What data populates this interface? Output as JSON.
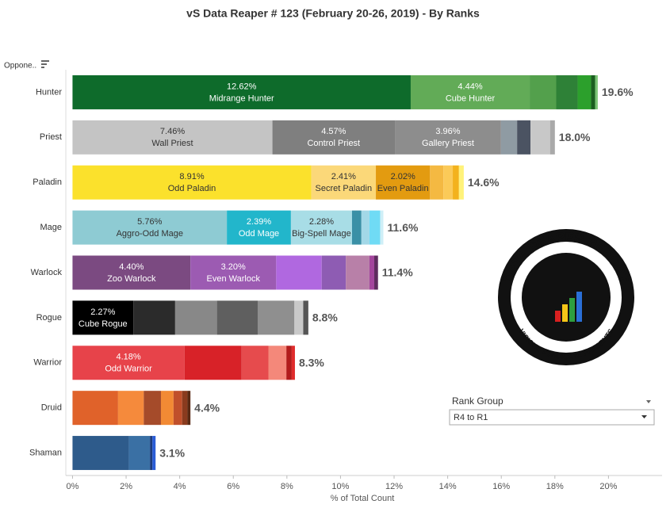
{
  "chart_data": {
    "type": "bar",
    "orientation": "horizontal",
    "stacked": true,
    "title": "vS Data Reaper #  123 (February 20-26, 2019) - By Ranks",
    "row_header": "Oppone..",
    "x_label": "% of Total Count",
    "xlim": [
      -0.25,
      22
    ],
    "xticks": [
      {
        "value": 0,
        "label": "0%"
      },
      {
        "value": 2,
        "label": "2%"
      },
      {
        "value": 4,
        "label": "4%"
      },
      {
        "value": 6,
        "label": "6%"
      },
      {
        "value": 8,
        "label": "8%"
      },
      {
        "value": 10,
        "label": "10%"
      },
      {
        "value": 12,
        "label": "12%"
      },
      {
        "value": 14,
        "label": "14%"
      },
      {
        "value": 16,
        "label": "16%"
      },
      {
        "value": 18,
        "label": "18%"
      },
      {
        "value": 20,
        "label": "20%"
      }
    ],
    "categories": [
      "Hunter",
      "Priest",
      "Paladin",
      "Mage",
      "Warlock",
      "Rogue",
      "Warrior",
      "Druid",
      "Shaman"
    ],
    "totals": [
      19.6,
      18.0,
      14.6,
      11.6,
      11.4,
      8.8,
      8.3,
      4.4,
      3.1
    ],
    "total_labels": [
      "19.6%",
      "18.0%",
      "14.6%",
      "11.6%",
      "11.4%",
      "8.8%",
      "8.3%",
      "4.4%",
      "3.1%"
    ],
    "stacks": [
      [
        {
          "name": "Midrange Hunter",
          "value": 12.62,
          "value_label": "12.62%",
          "color": "#0e6b2b"
        },
        {
          "name": "Cube Hunter",
          "value": 4.44,
          "value_label": "4.44%",
          "color": "#62ab57"
        },
        {
          "value": 0.99,
          "color": "#53a04c"
        },
        {
          "value": 0.8,
          "color": "#2e8137"
        },
        {
          "value": 0.5,
          "color": "#2ca02c"
        },
        {
          "value": 0.15,
          "color": "#1b5e20"
        },
        {
          "value": 0.1,
          "color": "#7cc576"
        }
      ],
      [
        {
          "name": "Wall Priest",
          "value": 7.46,
          "value_label": "7.46%",
          "color": "#c4c4c4"
        },
        {
          "name": "Control Priest",
          "value": 4.57,
          "value_label": "4.57%",
          "color": "#7f7f7f"
        },
        {
          "name": "Gallery Priest",
          "value": 3.96,
          "value_label": "3.96%",
          "color": "#8d8d8d"
        },
        {
          "value": 0.6,
          "color": "#8f9ba3"
        },
        {
          "value": 0.5,
          "color": "#4b5362"
        },
        {
          "value": 0.73,
          "color": "#c8c8c8"
        },
        {
          "value": 0.18,
          "color": "#a9a9a9"
        }
      ],
      [
        {
          "name": "Odd Paladin",
          "value": 8.91,
          "value_label": "8.91%",
          "color": "#fbe12c"
        },
        {
          "name": "Secret Paladin",
          "value": 2.41,
          "value_label": "2.41%",
          "color": "#fbd879"
        },
        {
          "name": "Even Paladin",
          "value": 2.02,
          "value_label": "2.02%",
          "color": "#e39b10"
        },
        {
          "value": 0.5,
          "color": "#f4b942"
        },
        {
          "value": 0.35,
          "color": "#fbca58"
        },
        {
          "value": 0.23,
          "color": "#f3b21c"
        },
        {
          "value": 0.18,
          "color": "#fff27a"
        }
      ],
      [
        {
          "name": "Aggro-Odd Mage",
          "value": 5.76,
          "value_label": "5.76%",
          "color": "#8ecbd3"
        },
        {
          "name": "Odd Mage",
          "value": 2.39,
          "value_label": "2.39%",
          "color": "#22b6cb"
        },
        {
          "name": "Big-Spell Mage",
          "value": 2.28,
          "value_label": "2.28%",
          "color": "#a8dde6"
        },
        {
          "value": 0.35,
          "color": "#3a90a6"
        },
        {
          "value": 0.3,
          "color": "#a3d8e7"
        },
        {
          "value": 0.4,
          "color": "#70dbf5"
        },
        {
          "value": 0.12,
          "color": "#cfeff7"
        }
      ],
      [
        {
          "name": "Zoo Warlock",
          "value": 4.4,
          "value_label": "4.40%",
          "color": "#7b4a81"
        },
        {
          "name": "Even Warlock",
          "value": 3.2,
          "value_label": "3.20%",
          "color": "#9c5bb2"
        },
        {
          "value": 1.7,
          "color": "#b068e0"
        },
        {
          "value": 0.9,
          "color": "#8e5cb3"
        },
        {
          "value": 0.88,
          "color": "#b880a8"
        },
        {
          "value": 0.18,
          "color": "#a3459c"
        },
        {
          "value": 0.14,
          "color": "#5e2c5e"
        }
      ],
      [
        {
          "name": "Cube Rogue",
          "value": 2.27,
          "value_label": "2.27%",
          "color": "#000000"
        },
        {
          "value": 1.56,
          "color": "#2b2b2b"
        },
        {
          "value": 1.56,
          "color": "#888888"
        },
        {
          "value": 1.52,
          "color": "#5f5f5f"
        },
        {
          "value": 1.37,
          "color": "#8f8f8f"
        },
        {
          "value": 0.33,
          "color": "#c9c9c9"
        },
        {
          "value": 0.19,
          "color": "#555555"
        }
      ],
      [
        {
          "name": "Odd Warrior",
          "value": 4.18,
          "value_label": "4.18%",
          "color": "#e7434a"
        },
        {
          "value": 2.13,
          "color": "#d82228"
        },
        {
          "value": 1.0,
          "color": "#e64b4d"
        },
        {
          "value": 0.67,
          "color": "#f4887a"
        },
        {
          "value": 0.2,
          "color": "#b31c1c"
        },
        {
          "value": 0.12,
          "color": "#e02c2c"
        }
      ],
      [
        {
          "value": 1.7,
          "color": "#e0622a"
        },
        {
          "value": 0.96,
          "color": "#f58a3c"
        },
        {
          "value": 0.64,
          "color": "#a54b2a"
        },
        {
          "value": 0.47,
          "color": "#f28a34"
        },
        {
          "value": 0.32,
          "color": "#c0502b"
        },
        {
          "value": 0.2,
          "color": "#8a3b1e"
        },
        {
          "value": 0.11,
          "color": "#5a2a14"
        }
      ],
      [
        {
          "value": 2.1,
          "color": "#2e5b8b"
        },
        {
          "value": 0.79,
          "color": "#3a70a4"
        },
        {
          "value": 0.09,
          "color": "#1d3b7a"
        },
        {
          "value": 0.12,
          "color": "#2a5cd6"
        }
      ]
    ]
  },
  "filter": {
    "title": "Rank Group",
    "selected": "R4 to R1"
  },
  "logo": {
    "top_text": "DATA REAPER REPORT",
    "bottom_text": "VICIOUS SYNDICATE PRESENTS"
  }
}
